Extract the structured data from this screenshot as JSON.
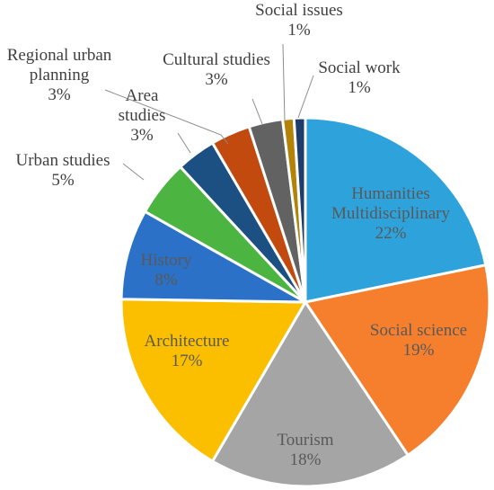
{
  "chart_data": {
    "type": "pie",
    "slices": [
      {
        "name": "Humanities Multidisciplinary",
        "label_lines": [
          "Humanities",
          "Multidisciplinary"
        ],
        "pct_text": "22%",
        "value": 22,
        "color": "#2ea2db"
      },
      {
        "name": "Social science",
        "label_lines": [
          "Social science"
        ],
        "pct_text": "19%",
        "value": 19,
        "color": "#f57f2d"
      },
      {
        "name": "Tourism",
        "label_lines": [
          "Tourism"
        ],
        "pct_text": "18%",
        "value": 18,
        "color": "#a5a5a5"
      },
      {
        "name": "Architecture",
        "label_lines": [
          "Architecture"
        ],
        "pct_text": "17%",
        "value": 17,
        "color": "#fcbf00"
      },
      {
        "name": "History",
        "label_lines": [
          "History"
        ],
        "pct_text": "8%",
        "value": 8,
        "color": "#2b71c7"
      },
      {
        "name": "Urban studies",
        "label_lines": [
          "Urban studies"
        ],
        "pct_text": "5%",
        "value": 5,
        "color": "#4cb441"
      },
      {
        "name": "Area studies",
        "label_lines": [
          "Area",
          "studies"
        ],
        "pct_text": "3%",
        "value": 3.5,
        "color": "#1c4f82"
      },
      {
        "name": "Regional urban planning",
        "label_lines": [
          "Regional urban",
          "planning"
        ],
        "pct_text": "3%",
        "value": 3.5,
        "color": "#c24a0e"
      },
      {
        "name": "Cultural studies",
        "label_lines": [
          "Cultural studies"
        ],
        "pct_text": "3%",
        "value": 3,
        "color": "#626262"
      },
      {
        "name": "Social issues",
        "label_lines": [
          "Social issues"
        ],
        "pct_text": "1%",
        "value": 1,
        "color": "#b38208"
      },
      {
        "name": "Social work",
        "label_lines": [
          "Social work"
        ],
        "pct_text": "1%",
        "value": 1,
        "color": "#1e3d6b"
      }
    ],
    "start_angle_deg": 0,
    "direction": "clockwise",
    "legend": "none"
  }
}
